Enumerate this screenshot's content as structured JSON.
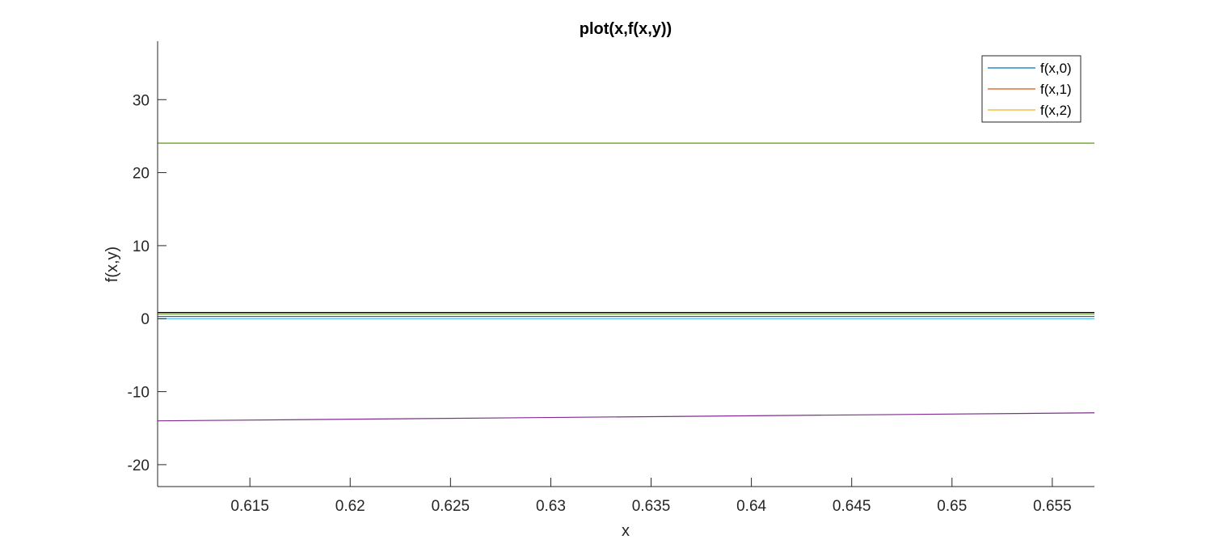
{
  "chart_data": {
    "type": "line",
    "title": "plot(x,f(x,y))",
    "xlabel": "x",
    "ylabel": "f(x,y)",
    "xlim": [
      0.6104,
      0.6571
    ],
    "ylim": [
      -23,
      38
    ],
    "x_ticks": [
      0.615,
      0.62,
      0.625,
      0.63,
      0.635,
      0.64,
      0.645,
      0.65,
      0.655
    ],
    "x_tick_labels": [
      "0.615",
      "0.62",
      "0.625",
      "0.63",
      "0.635",
      "0.64",
      "0.645",
      "0.65",
      "0.655"
    ],
    "y_ticks": [
      -20,
      -10,
      0,
      10,
      20,
      30
    ],
    "y_tick_labels": [
      "-20",
      "-10",
      "0",
      "10",
      "20",
      "30"
    ],
    "grid": false,
    "legend_position": "top-right",
    "series": [
      {
        "name": "f(x,0)",
        "color": "#0072bd",
        "x": [
          0.6104,
          0.6571
        ],
        "y": [
          0.3,
          0.3
        ],
        "in_legend": true
      },
      {
        "name": "f(x,1)",
        "color": "#d95319",
        "x": [
          0.6104,
          0.6571
        ],
        "y": [
          0.8,
          0.8
        ],
        "in_legend": true
      },
      {
        "name": "f(x,2)",
        "color": "#edb120",
        "x": [
          0.6104,
          0.6571
        ],
        "y": [
          24.0,
          24.0
        ],
        "in_legend": true
      },
      {
        "color": "#7e2f8e",
        "x": [
          0.6104,
          0.6571
        ],
        "y": [
          -14.0,
          -12.9
        ],
        "in_legend": false
      },
      {
        "color": "#77ac30",
        "x": [
          0.6104,
          0.6571
        ],
        "y": [
          24.05,
          24.05
        ],
        "in_legend": false
      },
      {
        "color": "#77ac30",
        "x": [
          0.6104,
          0.6571
        ],
        "y": [
          0.6,
          0.6
        ],
        "in_legend": false
      },
      {
        "color": "#4dbeee",
        "x": [
          0.6104,
          0.6571
        ],
        "y": [
          0.0,
          0.0
        ],
        "in_legend": false
      },
      {
        "color": "#000000",
        "x": [
          0.6104,
          0.6571
        ],
        "y": [
          0.85,
          0.85
        ],
        "in_legend": false
      }
    ]
  }
}
